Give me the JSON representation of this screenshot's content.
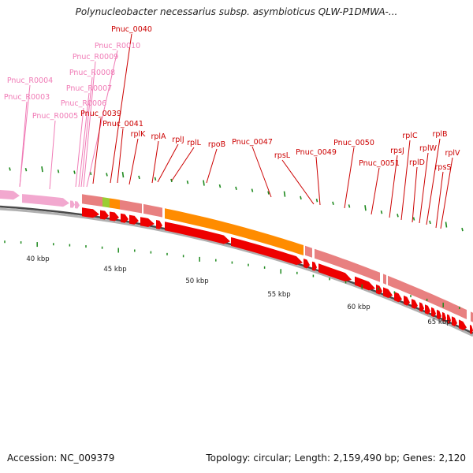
{
  "title": "Polynucleobacter necessarius subsp. asymbioticus QLW-P1DMWA-...",
  "colors": {
    "rrna": "#f2a8cf",
    "rrna_label": "#f07bb6",
    "gene_label": "#cc0000",
    "cds_dark": "#ee0000",
    "cds_light": "#e88080",
    "orange": "#ff8c00",
    "green": "#9acd32",
    "tick": "#1f8a1f",
    "backbone": "#888888"
  },
  "labels": [
    {
      "text": "Pnuc_R0004",
      "kind": "rrna"
    },
    {
      "text": "Pnuc_R0003",
      "kind": "rrna"
    },
    {
      "text": "Pnuc_R0005",
      "kind": "rrna"
    },
    {
      "text": "Pnuc_R0006",
      "kind": "rrna"
    },
    {
      "text": "Pnuc_R0007",
      "kind": "rrna"
    },
    {
      "text": "Pnuc_R0008",
      "kind": "rrna"
    },
    {
      "text": "Pnuc_R0009",
      "kind": "rrna"
    },
    {
      "text": "Pnuc_R0010",
      "kind": "rrna"
    },
    {
      "text": "Pnuc_0040",
      "kind": "gene"
    },
    {
      "text": "Pnuc_0039",
      "kind": "gene"
    },
    {
      "text": "Pnuc_0041",
      "kind": "gene"
    },
    {
      "text": "rplK",
      "kind": "gene"
    },
    {
      "text": "rplA",
      "kind": "gene"
    },
    {
      "text": "rplJ",
      "kind": "gene"
    },
    {
      "text": "rplL",
      "kind": "gene"
    },
    {
      "text": "rpoB",
      "kind": "gene"
    },
    {
      "text": "Pnuc_0047",
      "kind": "gene"
    },
    {
      "text": "rpsL",
      "kind": "gene"
    },
    {
      "text": "Pnuc_0049",
      "kind": "gene"
    },
    {
      "text": "Pnuc_0050",
      "kind": "gene"
    },
    {
      "text": "Pnuc_0051",
      "kind": "gene"
    },
    {
      "text": "rpsJ",
      "kind": "gene"
    },
    {
      "text": "rplC",
      "kind": "gene"
    },
    {
      "text": "rplD",
      "kind": "gene"
    },
    {
      "text": "rplW",
      "kind": "gene"
    },
    {
      "text": "rplB",
      "kind": "gene"
    },
    {
      "text": "rpsS",
      "kind": "gene"
    },
    {
      "text": "rplV",
      "kind": "gene"
    }
  ],
  "scale_labels": [
    "40 kbp",
    "45 kbp",
    "50 kbp",
    "55 kbp",
    "60 kbp",
    "65 kbp"
  ],
  "footer": {
    "accession": "Accession: NC_009379",
    "info": "Topology: circular; Length: 2,159,490 bp; Genes: 2,120"
  }
}
